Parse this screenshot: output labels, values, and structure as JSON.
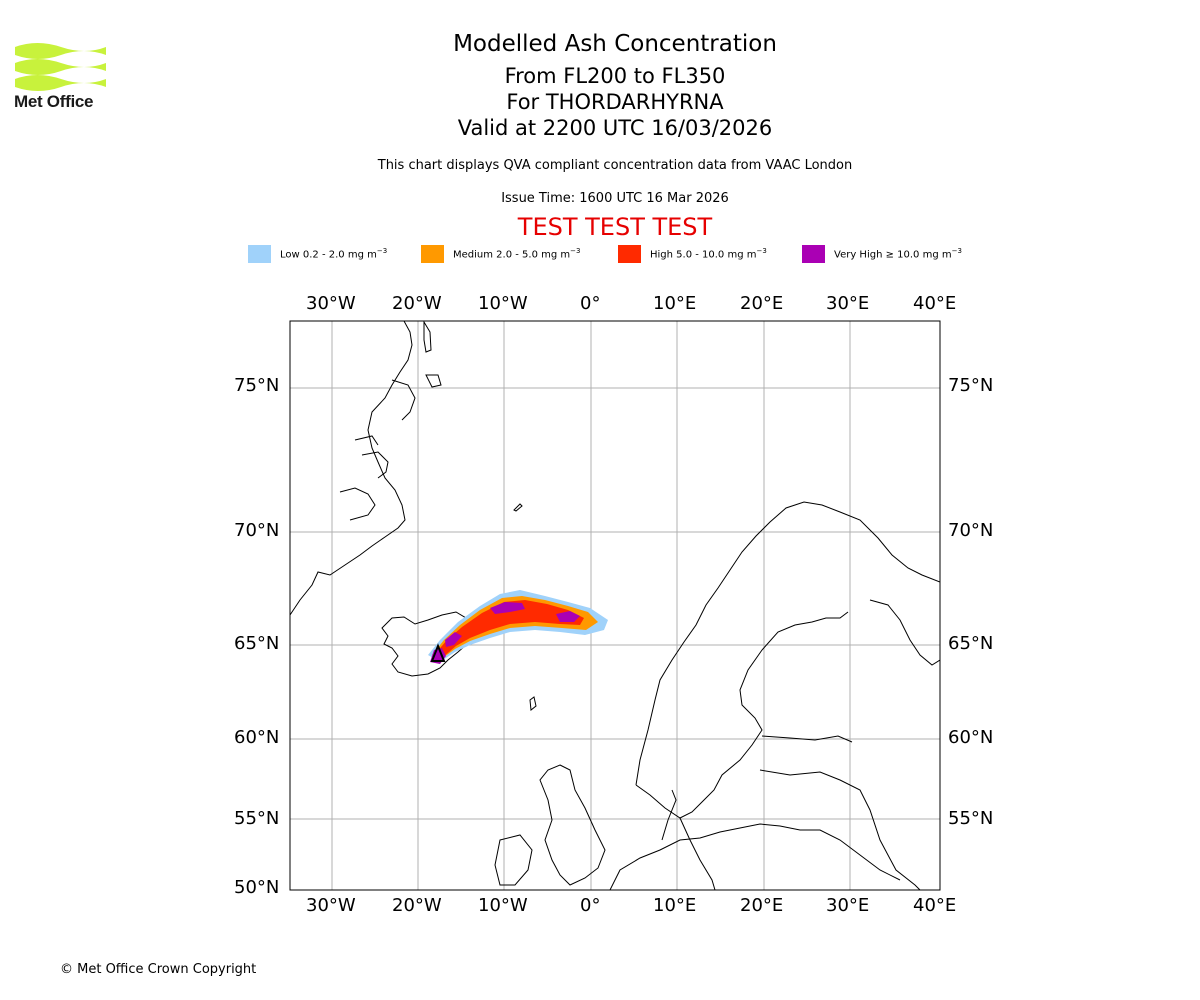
{
  "logo": {
    "name": "Met Office"
  },
  "header": {
    "title": "Modelled Ash Concentration",
    "levels": "From FL200 to FL350",
    "volcano": "For THORDARHYRNA",
    "valid": "Valid at 2200 UTC 16/03/2026",
    "subtitle": "This chart displays QVA compliant concentration data from VAAC London",
    "issue_time": "Issue Time: 1600 UTC 16 Mar 2026",
    "test_banner": "TEST TEST TEST"
  },
  "legend": [
    {
      "label": "Low 0.2 - 2.0 mg m",
      "unit_exp": "−3",
      "color": "#a0d2fa"
    },
    {
      "label": "Medium 2.0 - 5.0 mg m",
      "unit_exp": "−3",
      "color": "#ff9900"
    },
    {
      "label": "High 5.0 - 10.0 mg m",
      "unit_exp": "−3",
      "color": "#ff2a00"
    },
    {
      "label": "Very High  ≥  10.0 mg m",
      "unit_exp": "−3",
      "color": "#aa00b4"
    }
  ],
  "axes": {
    "lon_labels": [
      "30°W",
      "20°W",
      "10°W",
      "0°",
      "10°E",
      "20°E",
      "30°E",
      "40°E"
    ],
    "lat_labels": [
      "75°N",
      "70°N",
      "65°N",
      "60°N",
      "55°N",
      "50°N"
    ]
  },
  "footer": {
    "copyright": "© Met Office Crown Copyright"
  }
}
